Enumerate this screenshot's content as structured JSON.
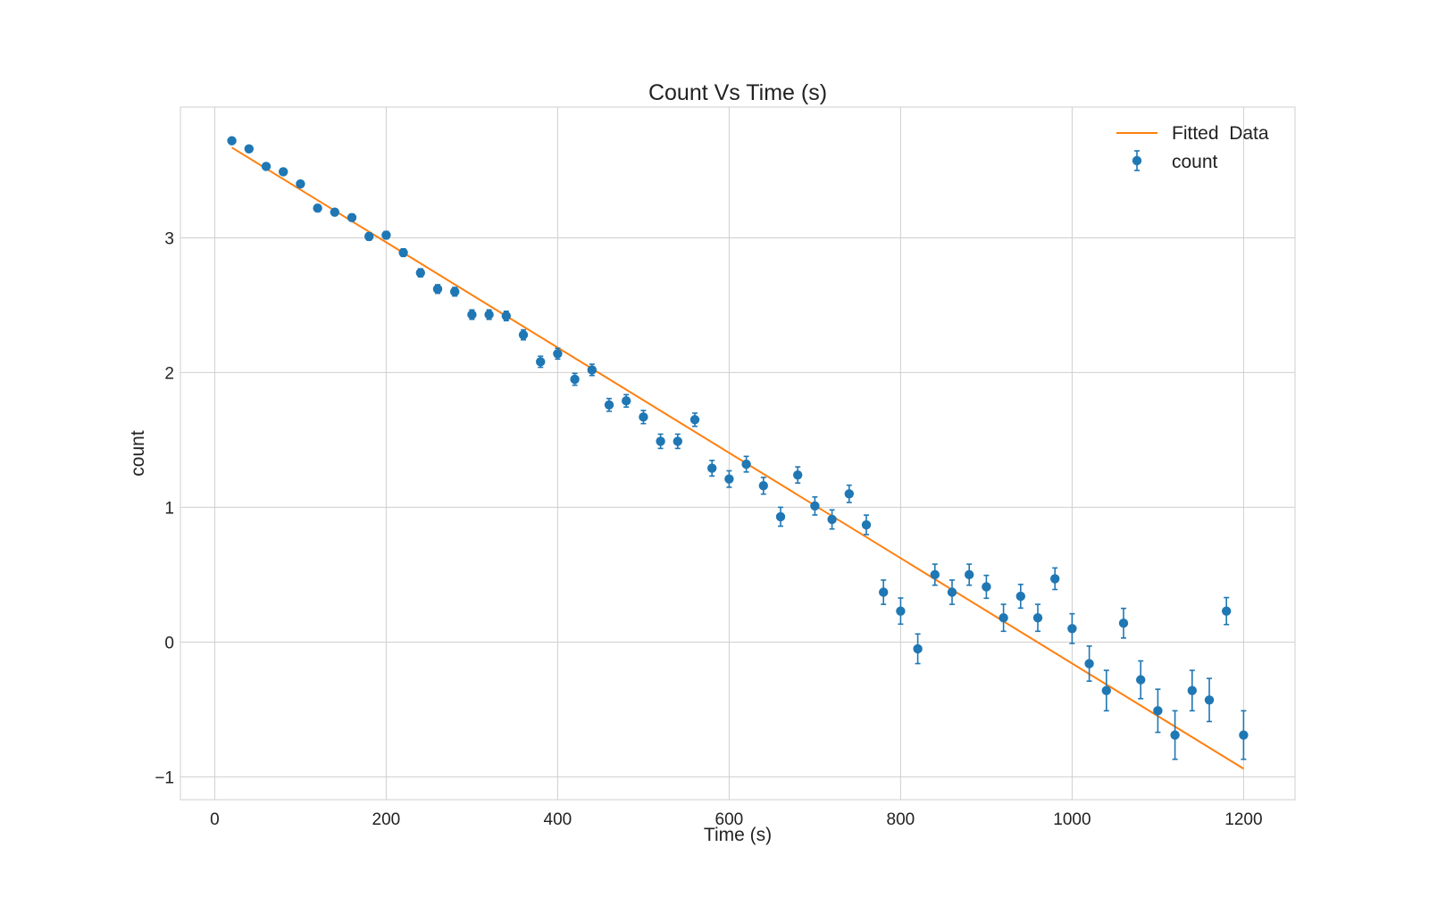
{
  "chart_data": {
    "type": "scatter",
    "title": "Count Vs Time (s)",
    "xlabel": "Time (s)",
    "ylabel": "count",
    "xlim": [
      -40,
      1260
    ],
    "ylim": [
      -1.17,
      3.97
    ],
    "xticks": [
      0,
      200,
      400,
      600,
      800,
      1000,
      1200
    ],
    "yticks": [
      -1,
      0,
      1,
      2,
      3
    ],
    "xtick_labels": [
      "0",
      "200",
      "400",
      "600",
      "800",
      "1000",
      "1200"
    ],
    "ytick_labels": [
      "−1",
      "0",
      "1",
      "2",
      "3"
    ],
    "grid": true,
    "legend_position": "top-right",
    "series": [
      {
        "name": "count",
        "kind": "errorbar",
        "color": "#1f77b4",
        "x": [
          20,
          40,
          60,
          80,
          100,
          120,
          140,
          160,
          180,
          200,
          220,
          240,
          260,
          280,
          300,
          320,
          340,
          360,
          380,
          400,
          420,
          440,
          460,
          480,
          500,
          520,
          540,
          560,
          580,
          600,
          620,
          640,
          660,
          680,
          700,
          720,
          740,
          760,
          780,
          800,
          820,
          840,
          860,
          880,
          900,
          920,
          940,
          960,
          980,
          1000,
          1020,
          1040,
          1060,
          1080,
          1100,
          1120,
          1140,
          1160,
          1180,
          1200
        ],
        "y": [
          3.72,
          3.66,
          3.53,
          3.49,
          3.4,
          3.22,
          3.19,
          3.15,
          3.01,
          3.02,
          2.89,
          2.74,
          2.62,
          2.6,
          2.43,
          2.43,
          2.42,
          2.28,
          2.08,
          2.14,
          1.95,
          2.02,
          1.76,
          1.79,
          1.67,
          1.49,
          1.49,
          1.65,
          1.29,
          1.21,
          1.32,
          1.16,
          0.93,
          1.24,
          1.01,
          0.91,
          1.1,
          0.87,
          0.37,
          0.23,
          -0.05,
          0.5,
          0.37,
          0.5,
          0.41,
          0.18,
          0.34,
          0.18,
          0.47,
          0.1,
          -0.16,
          -0.36,
          0.14,
          -0.28,
          -0.51,
          -0.69,
          -0.36,
          -0.43,
          0.23,
          -0.69
        ],
        "yerr": [
          0.019,
          0.02,
          0.021,
          0.022,
          0.022,
          0.024,
          0.024,
          0.025,
          0.027,
          0.027,
          0.028,
          0.03,
          0.032,
          0.032,
          0.035,
          0.035,
          0.035,
          0.037,
          0.041,
          0.04,
          0.044,
          0.042,
          0.047,
          0.046,
          0.049,
          0.053,
          0.053,
          0.049,
          0.058,
          0.061,
          0.058,
          0.062,
          0.07,
          0.06,
          0.067,
          0.071,
          0.064,
          0.072,
          0.09,
          0.097,
          0.11,
          0.078,
          0.09,
          0.078,
          0.085,
          0.1,
          0.088,
          0.1,
          0.08,
          0.11,
          0.13,
          0.15,
          0.11,
          0.14,
          0.16,
          0.18,
          0.15,
          0.16,
          0.1,
          0.18
        ]
      },
      {
        "name": "Fitted  Data",
        "kind": "line",
        "color": "#ff7f0e",
        "x": [
          20,
          1200
        ],
        "y": [
          3.67,
          -0.94
        ]
      }
    ]
  }
}
